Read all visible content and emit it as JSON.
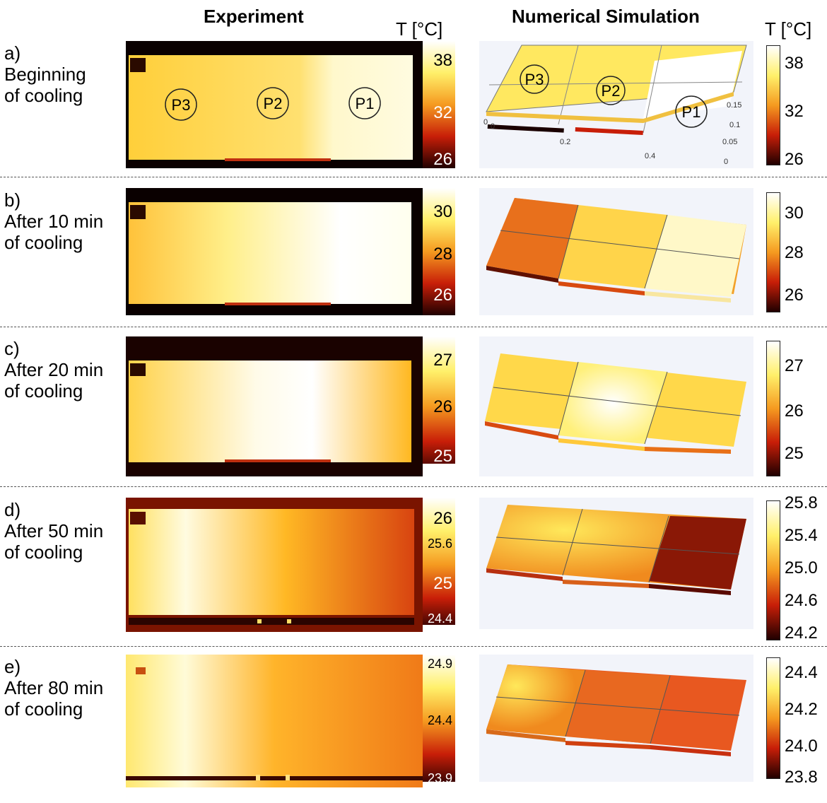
{
  "header": {
    "experiment": "Experiment",
    "simulation": "Numerical Simulation",
    "unit_left": "T [°C]",
    "unit_right": "T [°C]"
  },
  "panels": [
    {
      "label": [
        "a)",
        "Beginning",
        "of cooling"
      ],
      "exp_ticks": [
        "38",
        "32",
        "26"
      ],
      "sim_ticks": [
        "38",
        "32",
        "26"
      ],
      "zones": [
        "P3",
        "P2",
        "P1"
      ],
      "axis_labels": [
        "0.15",
        "0.1",
        "0.05",
        "0",
        "0.2",
        "0.4",
        "0",
        "0"
      ]
    },
    {
      "label": [
        "b)",
        "After 10 min",
        "of cooling"
      ],
      "exp_ticks": [
        "30",
        "28",
        "26"
      ],
      "sim_ticks": [
        "30",
        "28",
        "26"
      ]
    },
    {
      "label": [
        "c)",
        "After 20 min",
        "of cooling"
      ],
      "exp_ticks": [
        "27",
        "26",
        "25"
      ],
      "sim_ticks": [
        "27",
        "26",
        "25"
      ]
    },
    {
      "label": [
        "d)",
        "After 50 min",
        "of cooling"
      ],
      "exp_ticks": [
        "26",
        "25.6",
        "25",
        "24.4"
      ],
      "sim_ticks": [
        "25.8",
        "25.4",
        "25.0",
        "24.6",
        "24.2"
      ]
    },
    {
      "label": [
        "e)",
        "After 80 min",
        "of cooling"
      ],
      "exp_ticks": [
        "24.9",
        "24.4",
        "23.9"
      ],
      "sim_ticks": [
        "24.4",
        "24.2",
        "24.0",
        "23.8"
      ]
    }
  ],
  "colors": {
    "hot_white": "#ffffff",
    "yellow": "#ffe84a",
    "orange": "#f58a1c",
    "red": "#c8200a",
    "dark": "#2a0000"
  }
}
